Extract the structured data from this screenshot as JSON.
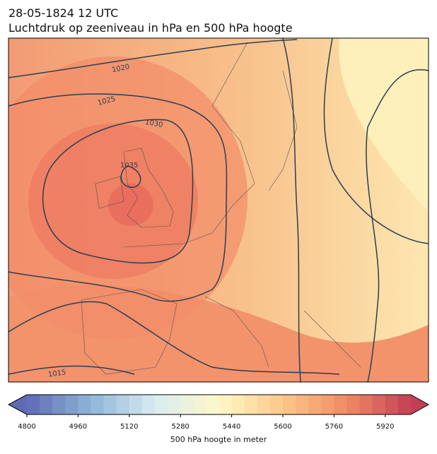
{
  "header": {
    "date": "28-05-1824 12 UTC",
    "title": "Luchtdruk op zeeniveau in hPa en 500 hPa hoogte"
  },
  "map": {
    "contour_labels": [
      1020,
      1025,
      1030,
      1035,
      1015
    ]
  },
  "colorbar": {
    "label": "500 hPa hoogte in meter",
    "lim": [
      4800,
      6000
    ],
    "step": 40,
    "ticks": [
      4800,
      4960,
      5120,
      5280,
      5440,
      5600,
      5760,
      5920
    ],
    "colors": [
      "#5e6bb5",
      "#8fb4d6",
      "#d8ecf2",
      "#fff8c8",
      "#fcc88a",
      "#f08a64",
      "#c24055"
    ]
  }
}
